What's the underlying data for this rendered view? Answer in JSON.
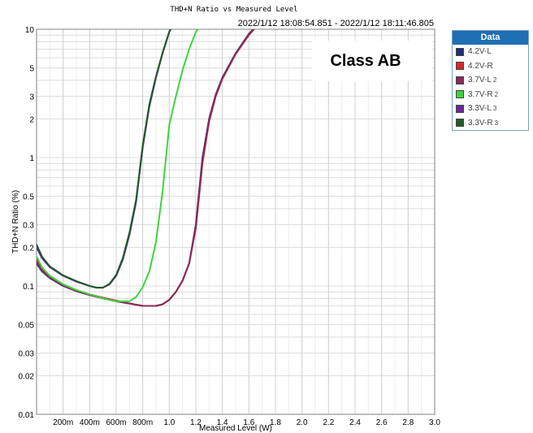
{
  "chart_data": {
    "type": "line",
    "title": "THD+N Ratio vs Measured Level",
    "subtitle": "2022/1/12 18:08:54.851 - 2022/1/12 18:11:46.805",
    "xlabel": "Measured Level (W)",
    "ylabel": "THD+N Ratio (%)",
    "annotation": "Class AB",
    "x_scale": "linear",
    "y_scale": "log",
    "xlim": [
      0,
      3.0
    ],
    "ylim": [
      0.01,
      10
    ],
    "grid": true,
    "legend_title": "Data",
    "legend_position": "right",
    "x_ticks": [
      {
        "value": 0.2,
        "label": "200m"
      },
      {
        "value": 0.4,
        "label": "400m"
      },
      {
        "value": 0.6,
        "label": "600m"
      },
      {
        "value": 0.8,
        "label": "800m"
      },
      {
        "value": 1.0,
        "label": "1.0"
      },
      {
        "value": 1.2,
        "label": "1.2"
      },
      {
        "value": 1.4,
        "label": "1.4"
      },
      {
        "value": 1.6,
        "label": "1.6"
      },
      {
        "value": 1.8,
        "label": "1.8"
      },
      {
        "value": 2.0,
        "label": "2.0"
      },
      {
        "value": 2.2,
        "label": "2.2"
      },
      {
        "value": 2.4,
        "label": "2.4"
      },
      {
        "value": 2.6,
        "label": "2.6"
      },
      {
        "value": 2.8,
        "label": "2.8"
      },
      {
        "value": 3.0,
        "label": "3.0"
      }
    ],
    "y_ticks": [
      {
        "value": 10,
        "label": "10"
      },
      {
        "value": 5,
        "label": "5"
      },
      {
        "value": 3,
        "label": "3"
      },
      {
        "value": 2,
        "label": "2"
      },
      {
        "value": 1,
        "label": "1"
      },
      {
        "value": 0.5,
        "label": "0.5"
      },
      {
        "value": 0.3,
        "label": "0.3"
      },
      {
        "value": 0.2,
        "label": "0.2"
      },
      {
        "value": 0.1,
        "label": "0.1"
      },
      {
        "value": 0.05,
        "label": "0.05"
      },
      {
        "value": 0.03,
        "label": "0.03"
      },
      {
        "value": 0.02,
        "label": "0.02"
      },
      {
        "value": 0.01,
        "label": "0.01"
      }
    ],
    "series": [
      {
        "name": "4.2V-L",
        "sub": "",
        "color": "#1a2f78",
        "x": [
          0.0,
          0.04,
          0.1,
          0.2,
          0.3,
          0.4,
          0.5,
          0.6,
          0.7,
          0.8,
          0.9,
          0.95,
          1.0,
          1.05,
          1.1,
          1.15,
          1.2,
          1.25,
          1.3,
          1.35,
          1.4,
          1.5,
          1.6,
          1.7
        ],
        "y": [
          0.15,
          0.13,
          0.115,
          0.1,
          0.091,
          0.085,
          0.08,
          0.076,
          0.073,
          0.07,
          0.07,
          0.072,
          0.078,
          0.09,
          0.11,
          0.15,
          0.3,
          1.0,
          2.0,
          3.1,
          4.2,
          6.5,
          9.2,
          12
        ]
      },
      {
        "name": "4.2V-R",
        "sub": "",
        "color": "#d42a2a",
        "x": [
          0.0,
          0.04,
          0.1,
          0.2,
          0.3,
          0.4,
          0.5,
          0.6,
          0.7,
          0.8,
          0.9,
          0.95,
          1.0,
          1.05,
          1.1,
          1.15,
          1.2,
          1.25,
          1.3,
          1.35,
          1.4,
          1.5,
          1.6,
          1.7
        ],
        "y": [
          0.16,
          0.135,
          0.118,
          0.102,
          0.092,
          0.086,
          0.081,
          0.077,
          0.073,
          0.07,
          0.07,
          0.072,
          0.078,
          0.09,
          0.11,
          0.15,
          0.28,
          0.9,
          1.9,
          3.0,
          4.1,
          6.4,
          9.0,
          11.8
        ]
      },
      {
        "name": "3.7V-L",
        "sub": "2",
        "color": "#8a2a5a",
        "x": [
          0.0,
          0.04,
          0.1,
          0.2,
          0.3,
          0.4,
          0.5,
          0.6,
          0.7,
          0.8,
          0.9,
          0.95,
          1.0,
          1.05,
          1.1,
          1.15,
          1.2,
          1.25,
          1.3,
          1.35,
          1.4,
          1.5,
          1.6,
          1.7
        ],
        "y": [
          0.155,
          0.132,
          0.116,
          0.101,
          0.091,
          0.085,
          0.08,
          0.076,
          0.073,
          0.07,
          0.07,
          0.072,
          0.078,
          0.09,
          0.11,
          0.15,
          0.29,
          0.95,
          1.95,
          3.05,
          4.15,
          6.45,
          9.1,
          11.9
        ]
      },
      {
        "name": "3.7V-R",
        "sub": "2",
        "color": "#3ed43e",
        "x": [
          0.0,
          0.04,
          0.1,
          0.2,
          0.3,
          0.4,
          0.5,
          0.6,
          0.7,
          0.75,
          0.8,
          0.85,
          0.9,
          0.95,
          1.0,
          1.05,
          1.1,
          1.15,
          1.2,
          1.25
        ],
        "y": [
          0.17,
          0.14,
          0.12,
          0.103,
          0.093,
          0.086,
          0.08,
          0.076,
          0.076,
          0.082,
          0.098,
          0.13,
          0.22,
          0.55,
          1.8,
          3.0,
          4.8,
          7.0,
          9.5,
          11.5
        ]
      },
      {
        "name": "3.3V-L",
        "sub": "3",
        "color": "#6a2a9a",
        "x": [
          0.0,
          0.04,
          0.1,
          0.2,
          0.3,
          0.4,
          0.45,
          0.5,
          0.55,
          0.6,
          0.65,
          0.7,
          0.75,
          0.8,
          0.85,
          0.9,
          0.95,
          1.0,
          1.05
        ],
        "y": [
          0.2,
          0.165,
          0.14,
          0.12,
          0.108,
          0.1,
          0.097,
          0.097,
          0.103,
          0.12,
          0.16,
          0.25,
          0.45,
          1.2,
          2.5,
          4.2,
          6.5,
          9.5,
          12.0
        ]
      },
      {
        "name": "3.3V-R",
        "sub": "3",
        "color": "#1f5a2a",
        "x": [
          0.0,
          0.04,
          0.1,
          0.2,
          0.3,
          0.4,
          0.45,
          0.5,
          0.55,
          0.6,
          0.65,
          0.7,
          0.75,
          0.8,
          0.85,
          0.9,
          0.95,
          1.0,
          1.05
        ],
        "y": [
          0.21,
          0.17,
          0.142,
          0.121,
          0.109,
          0.1,
          0.097,
          0.097,
          0.104,
          0.122,
          0.165,
          0.26,
          0.47,
          1.25,
          2.6,
          4.3,
          6.6,
          9.6,
          12.0
        ]
      }
    ]
  }
}
